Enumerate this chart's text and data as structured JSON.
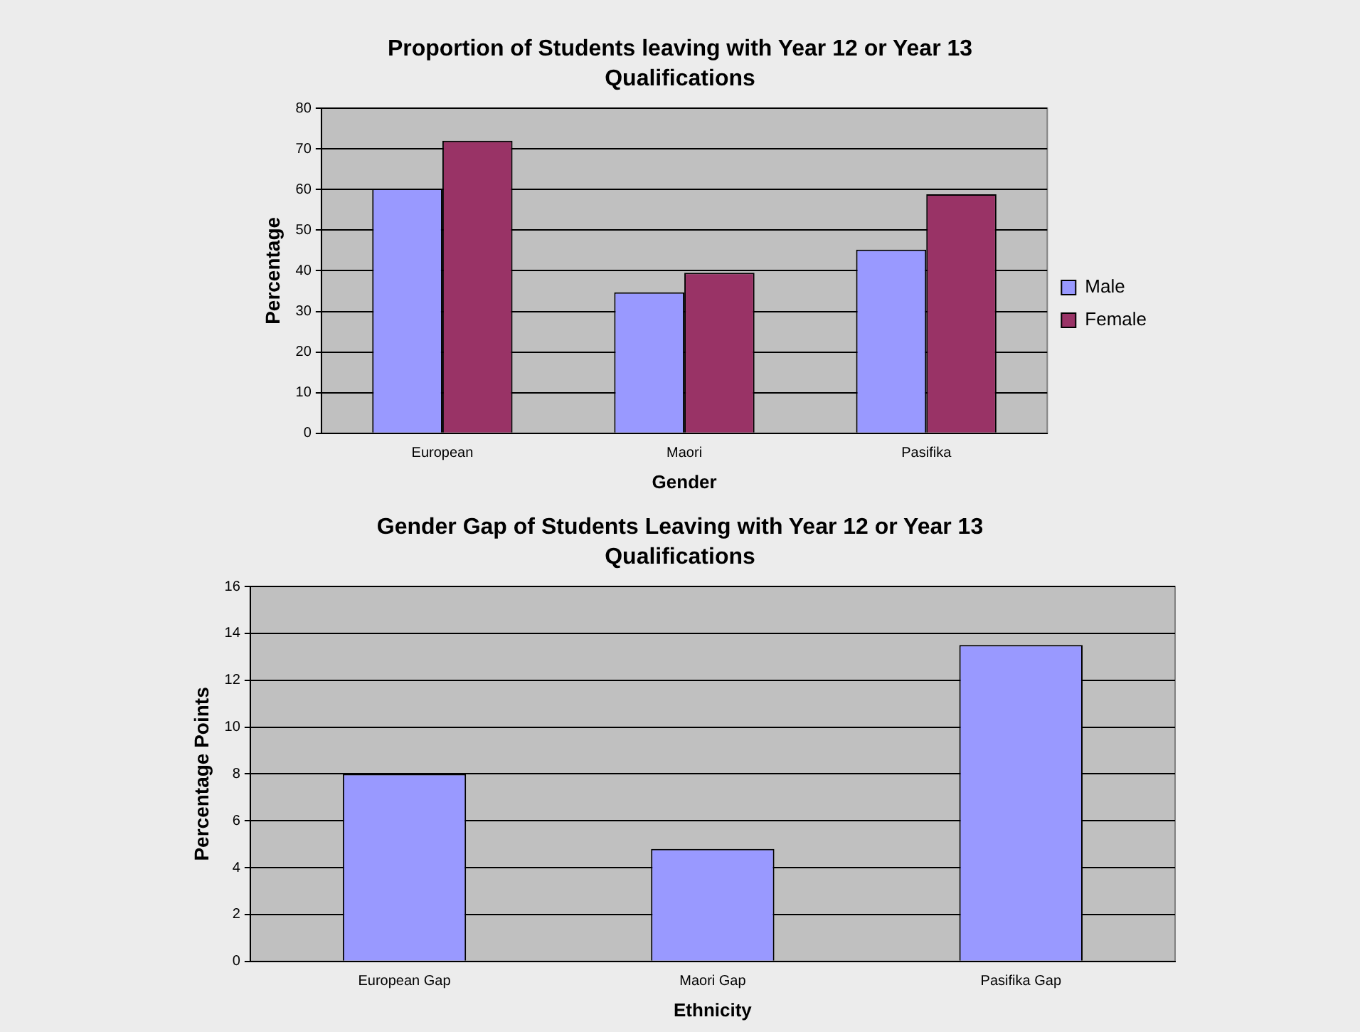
{
  "chart_data": [
    {
      "type": "bar",
      "title": "Proportion of Students leaving with Year 12 or Year 13 Qualifications",
      "xlabel": "Gender",
      "ylabel": "Percentage",
      "categories": [
        "European",
        "Maori",
        "Pasifika"
      ],
      "series": [
        {
          "name": "Male",
          "color": "#9999ff",
          "values": [
            60.2,
            34.7,
            45.2
          ]
        },
        {
          "name": "Female",
          "color": "#993366",
          "values": [
            72,
            39.5,
            58.8
          ]
        }
      ],
      "ylim": [
        0,
        80
      ],
      "yticks": [
        0,
        10,
        20,
        30,
        40,
        50,
        60,
        70,
        80
      ],
      "grid": "y",
      "legend": "right"
    },
    {
      "type": "bar",
      "title": "Gender Gap of Students Leaving with Year 12 or Year 13 Qualifications",
      "xlabel": "Ethnicity",
      "ylabel": "Percentage Points",
      "categories": [
        "European Gap",
        "Maori Gap",
        "Pasifika Gap"
      ],
      "values": [
        8,
        4.8,
        13.5
      ],
      "color": "#9999ff",
      "ylim": [
        0,
        16
      ],
      "yticks": [
        0,
        2,
        4,
        6,
        8,
        10,
        12,
        14,
        16
      ],
      "grid": "y"
    }
  ]
}
